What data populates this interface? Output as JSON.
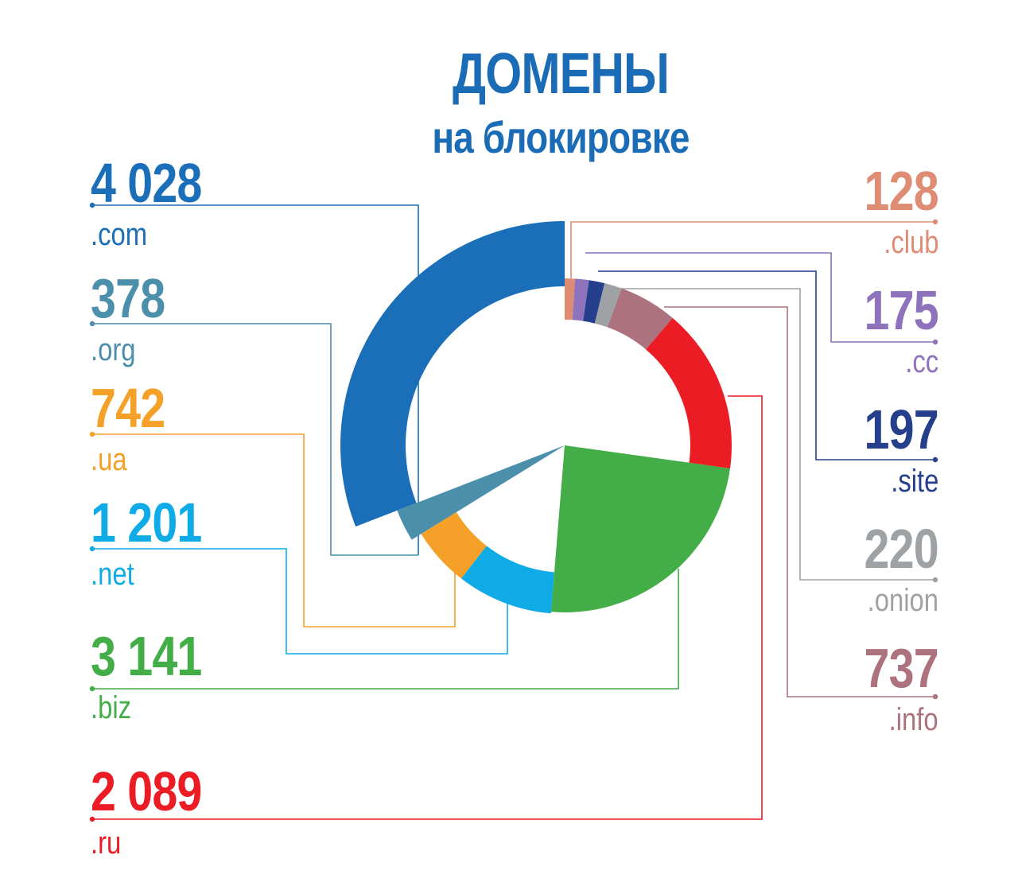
{
  "title": "ДОМЕНЫ",
  "subtitle": "на блокировке",
  "chart_data": {
    "type": "pie",
    "title": "ДОМЕНЫ на блокировке",
    "series": [
      {
        "label": "4 028",
        "name": ".com",
        "value": 4028,
        "color": "#1b6fb9"
      },
      {
        "label": "378",
        "name": ".org",
        "value": 378,
        "color": "#4b8fab"
      },
      {
        "label": "742",
        "name": ".ua",
        "value": 742,
        "color": "#f5a028"
      },
      {
        "label": "1 201",
        "name": ".net",
        "value": 1201,
        "color": "#0fabe6"
      },
      {
        "label": "3 141",
        "name": ".biz",
        "value": 3141,
        "color": "#43ad48"
      },
      {
        "label": "2 089",
        "name": ".ru",
        "value": 2089,
        "color": "#ec1c24"
      },
      {
        "label": "737",
        "name": ".info",
        "value": 737,
        "color": "#ac727d"
      },
      {
        "label": "220",
        "name": ".onion",
        "value": 220,
        "color": "#9fa2a5"
      },
      {
        "label": "197",
        "name": ".site",
        "value": 197,
        "color": "#253f8d"
      },
      {
        "label": "175",
        "name": ".cc",
        "value": 175,
        "color": "#8e72bc"
      },
      {
        "label": "128",
        "name": ".club",
        "value": 128,
        "color": "#de8d74"
      }
    ]
  }
}
